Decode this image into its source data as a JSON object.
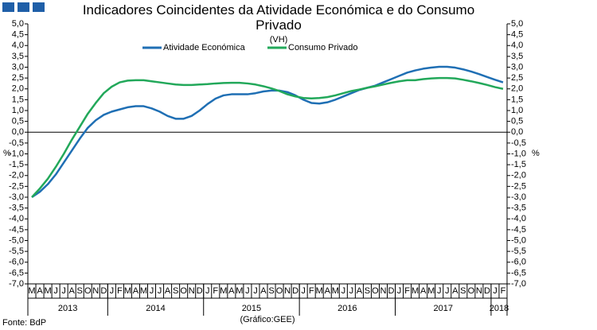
{
  "chart_data": {
    "type": "line",
    "title": "Indicadores Coincidentes da Atividade Económica e do Consumo Privado",
    "subtitle": "(VH)",
    "y_axis_label": "%",
    "y2_axis_label": "%",
    "source": "Fonte: BdP",
    "credit": "(Gráfico:GEE)",
    "mirror_y_axis": true,
    "categories": [
      "M",
      "A",
      "M",
      "J",
      "J",
      "A",
      "S",
      "O",
      "N",
      "D",
      "J",
      "F",
      "M",
      "A",
      "M",
      "J",
      "J",
      "A",
      "S",
      "O",
      "N",
      "D",
      "J",
      "F",
      "M",
      "A",
      "M",
      "J",
      "J",
      "A",
      "S",
      "O",
      "N",
      "D",
      "J",
      "F",
      "M",
      "A",
      "M",
      "J",
      "J",
      "A",
      "S",
      "O",
      "N",
      "D",
      "J",
      "F",
      "M",
      "A",
      "M",
      "J",
      "J",
      "A",
      "S",
      "O",
      "N",
      "D",
      "J",
      "F"
    ],
    "years": [
      "2013",
      "2014",
      "2015",
      "2016",
      "2017",
      "2018"
    ],
    "series": [
      {
        "name": "Atividade Económica",
        "color": "#1f6fb4",
        "values": [
          -3.0,
          -2.75,
          -2.4,
          -1.95,
          -1.4,
          -0.85,
          -0.3,
          0.2,
          0.55,
          0.8,
          0.95,
          1.05,
          1.15,
          1.2,
          1.2,
          1.1,
          0.95,
          0.75,
          0.62,
          0.62,
          0.75,
          1.0,
          1.3,
          1.55,
          1.7,
          1.75,
          1.75,
          1.75,
          1.8,
          1.88,
          1.92,
          1.92,
          1.85,
          1.7,
          1.5,
          1.35,
          1.32,
          1.38,
          1.5,
          1.65,
          1.8,
          1.95,
          2.05,
          2.15,
          2.3,
          2.45,
          2.6,
          2.75,
          2.85,
          2.93,
          2.98,
          3.02,
          3.02,
          2.98,
          2.9,
          2.8,
          2.68,
          2.55,
          2.42,
          2.3
        ]
      },
      {
        "name": "Consumo Privado",
        "color": "#22a85a",
        "values": [
          -3.0,
          -2.6,
          -2.15,
          -1.6,
          -1.0,
          -0.35,
          0.25,
          0.85,
          1.35,
          1.8,
          2.1,
          2.3,
          2.38,
          2.4,
          2.4,
          2.35,
          2.3,
          2.25,
          2.2,
          2.18,
          2.18,
          2.2,
          2.22,
          2.25,
          2.27,
          2.28,
          2.28,
          2.25,
          2.2,
          2.12,
          2.02,
          1.9,
          1.75,
          1.65,
          1.58,
          1.56,
          1.58,
          1.62,
          1.7,
          1.8,
          1.9,
          1.97,
          2.05,
          2.12,
          2.2,
          2.28,
          2.35,
          2.4,
          2.4,
          2.45,
          2.48,
          2.5,
          2.5,
          2.48,
          2.42,
          2.35,
          2.27,
          2.18,
          2.08,
          2.0
        ]
      }
    ],
    "ylim": [
      -7,
      5
    ],
    "yticks": [
      {
        "value": 5,
        "label": "5,0"
      },
      {
        "value": 4.5,
        "label": "4,5"
      },
      {
        "value": 4,
        "label": "4,0"
      },
      {
        "value": 3.5,
        "label": "3,5"
      },
      {
        "value": 3,
        "label": "3,0"
      },
      {
        "value": 2.5,
        "label": "2,5"
      },
      {
        "value": 2,
        "label": "2,0"
      },
      {
        "value": 1.5,
        "label": "1,5"
      },
      {
        "value": 1,
        "label": "1,0"
      },
      {
        "value": 0.5,
        "label": "0,5"
      },
      {
        "value": 0,
        "label": "0,0"
      },
      {
        "value": -0.5,
        "label": "-0,5"
      },
      {
        "value": -1,
        "label": "-1,0"
      },
      {
        "value": -1.5,
        "label": "-1,5"
      },
      {
        "value": -2,
        "label": "-2,0"
      },
      {
        "value": -2.5,
        "label": "-2,5"
      },
      {
        "value": -3,
        "label": "-3,0"
      },
      {
        "value": -3.5,
        "label": "-3,5"
      },
      {
        "value": -4,
        "label": "-4,0"
      },
      {
        "value": -4.5,
        "label": "-4,5"
      },
      {
        "value": -5,
        "label": "-5,0"
      },
      {
        "value": -5.5,
        "label": "-5,5"
      },
      {
        "value": -6,
        "label": "-6,0"
      },
      {
        "value": -6.5,
        "label": "-6,5"
      },
      {
        "value": -7,
        "label": "-7,0"
      }
    ]
  }
}
